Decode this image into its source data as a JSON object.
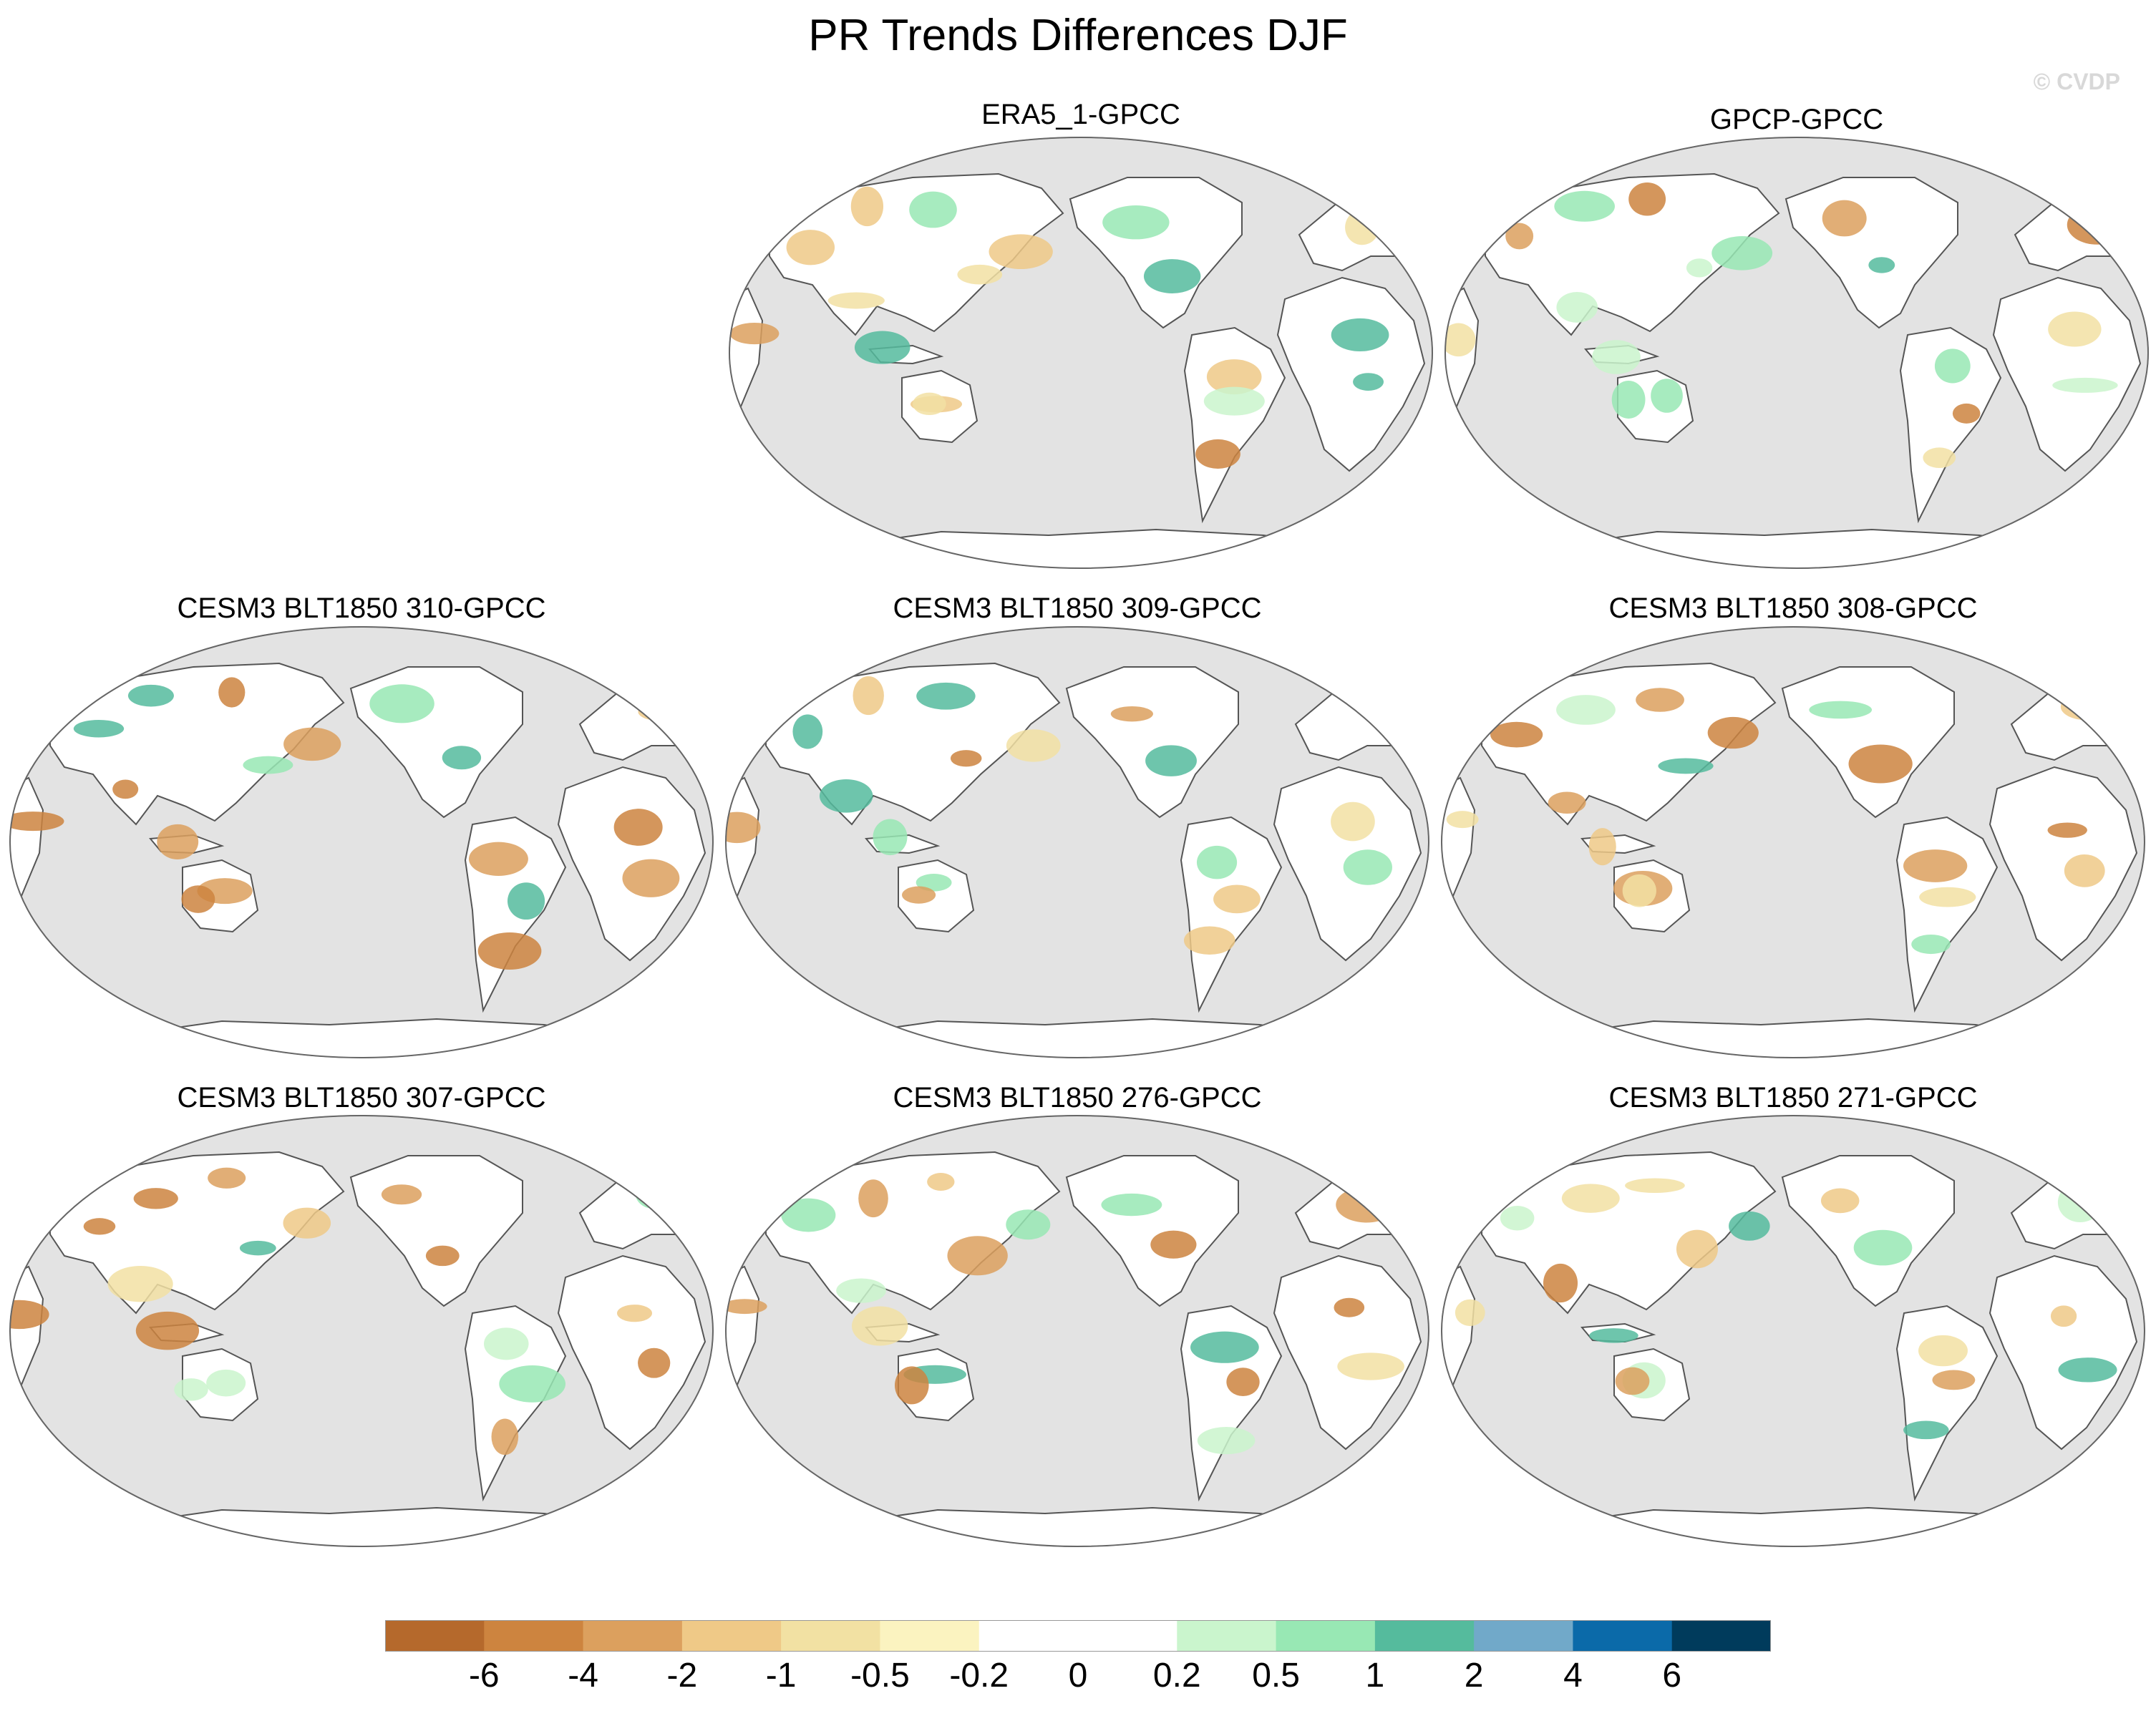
{
  "title": "PR Trends Differences DJF",
  "watermark": "© CVDP",
  "panels": [
    {
      "title": "ERA5_1-GPCC"
    },
    {
      "title": "GPCP-GPCC"
    },
    {
      "title": "CESM3 BLT1850 310-GPCC"
    },
    {
      "title": "CESM3 BLT1850 309-GPCC"
    },
    {
      "title": "CESM3 BLT1850 308-GPCC"
    },
    {
      "title": "CESM3 BLT1850 307-GPCC"
    },
    {
      "title": "CESM3 BLT1850 276-GPCC"
    },
    {
      "title": "CESM3 BLT1850 271-GPCC"
    }
  ],
  "colorbar": {
    "colors": [
      "#b5692c",
      "#cd843f",
      "#dca05e",
      "#efc987",
      "#f2e1a3",
      "#fbf3c0",
      "#ffffff",
      "#ffffff",
      "#caf5cd",
      "#98e8b4",
      "#55bb9d",
      "#71a9c9",
      "#0b6aa9",
      "#003b5c"
    ],
    "labels": [
      "-6",
      "-4",
      "-2",
      "-1",
      "-0.5",
      "-0.2",
      "0",
      "0.2",
      "0.5",
      "1",
      "2",
      "4",
      "6"
    ]
  },
  "colors": {
    "ocean": "#e3e3e3",
    "land": "#ffffff"
  }
}
